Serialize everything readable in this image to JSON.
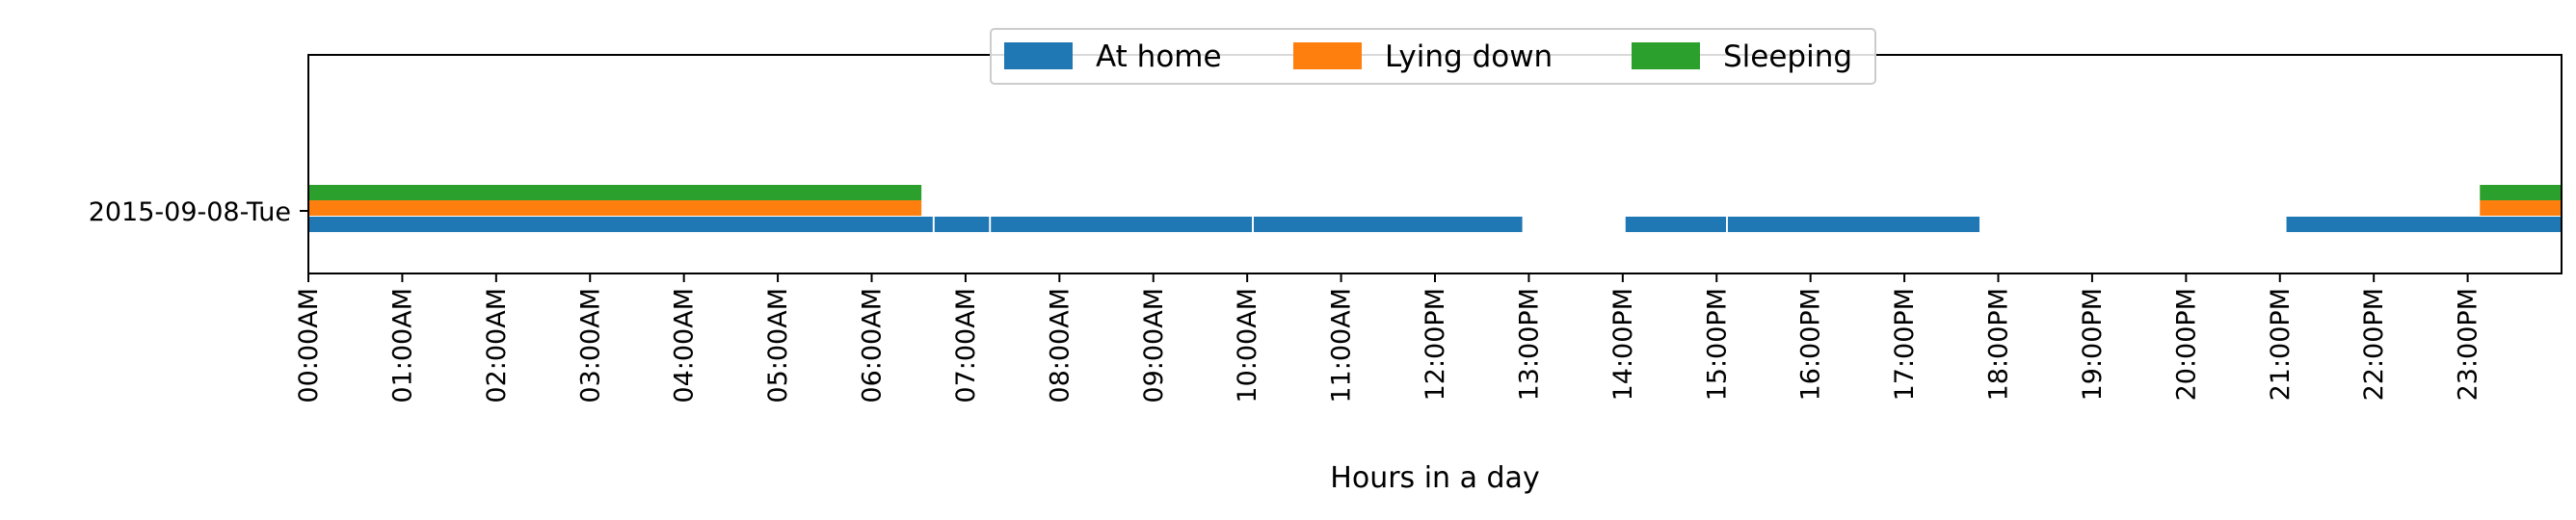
{
  "chart_data": {
    "type": "timeline",
    "xlabel": "Hours in a day",
    "ylabel": "",
    "xlim": [
      0,
      24
    ],
    "x_ticks": [
      "00:00AM",
      "01:00AM",
      "02:00AM",
      "03:00AM",
      "04:00AM",
      "05:00AM",
      "06:00AM",
      "07:00AM",
      "08:00AM",
      "09:00AM",
      "10:00AM",
      "11:00AM",
      "12:00PM",
      "13:00PM",
      "14:00PM",
      "15:00PM",
      "16:00PM",
      "17:00PM",
      "18:00PM",
      "19:00PM",
      "20:00PM",
      "21:00PM",
      "22:00PM",
      "23:00PM"
    ],
    "categories": [
      "2015-09-08-Tue"
    ],
    "legend_position": "top-center",
    "grid": false,
    "series": [
      {
        "name": "At home",
        "color": "#1f77b4",
        "intervals": [
          [
            0.0,
            6.65
          ],
          [
            6.67,
            7.25
          ],
          [
            7.27,
            10.05
          ],
          [
            10.07,
            12.93
          ],
          [
            14.03,
            15.1
          ],
          [
            15.12,
            17.8
          ],
          [
            21.07,
            24.0
          ]
        ]
      },
      {
        "name": "Lying down",
        "color": "#ff7f0e",
        "intervals": [
          [
            0.0,
            6.53
          ],
          [
            23.13,
            24.0
          ]
        ]
      },
      {
        "name": "Sleeping",
        "color": "#2ca02c",
        "intervals": [
          [
            0.0,
            6.53
          ],
          [
            23.13,
            24.0
          ]
        ]
      }
    ]
  }
}
